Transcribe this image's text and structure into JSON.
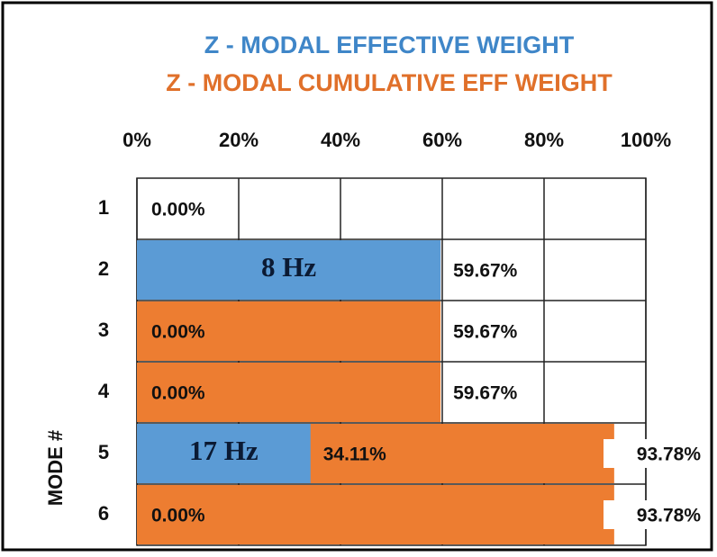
{
  "chart_data": {
    "type": "bar",
    "orientation": "horizontal",
    "categories": [
      "1",
      "2",
      "3",
      "4",
      "5",
      "6"
    ],
    "ylabel": "MODE #",
    "series": [
      {
        "name": "Z - MODAL EFFECTIVE WEIGHT",
        "color": "#5b9bd5",
        "values": [
          0,
          59.67,
          0,
          0,
          34.11,
          0
        ],
        "value_labels": [
          "0.00%",
          "59.67%",
          "0.00%",
          "0.00%",
          "34.11%",
          "0.00%"
        ]
      },
      {
        "name": "Z - MODAL CUMULATIVE EFF WEIGHT",
        "color": "#ed7d31",
        "values": [
          0,
          59.67,
          59.67,
          59.67,
          93.78,
          93.78
        ],
        "value_labels": [
          null,
          null,
          "59.67%",
          "59.67%",
          "93.78%",
          "93.78%"
        ]
      }
    ],
    "frequency_labels": [
      null,
      "8 Hz",
      null,
      null,
      "17 Hz",
      null
    ],
    "xlim": [
      0,
      100
    ],
    "xticks": [
      {
        "value": 0,
        "label": "0%"
      },
      {
        "value": 20,
        "label": "20%"
      },
      {
        "value": 40,
        "label": "40%"
      },
      {
        "value": 60,
        "label": "60%"
      },
      {
        "value": 80,
        "label": "80%"
      },
      {
        "value": 100,
        "label": "100%"
      }
    ],
    "grid": true,
    "legend_colors": [
      "#3f86c8",
      "#e0702a"
    ]
  }
}
